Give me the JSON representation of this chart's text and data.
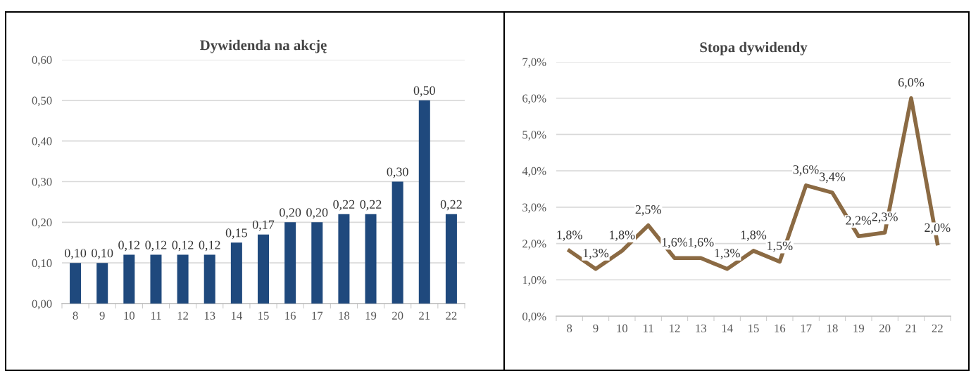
{
  "chart_data": [
    {
      "type": "bar",
      "title": "Dywidenda na akcję",
      "categories": [
        "8",
        "9",
        "10",
        "11",
        "12",
        "13",
        "14",
        "15",
        "16",
        "17",
        "18",
        "19",
        "20",
        "21",
        "22"
      ],
      "values": [
        0.1,
        0.1,
        0.12,
        0.12,
        0.12,
        0.12,
        0.15,
        0.17,
        0.2,
        0.2,
        0.22,
        0.22,
        0.3,
        0.5,
        0.22
      ],
      "value_labels": [
        "0,10",
        "0,10",
        "0,12",
        "0,12",
        "0,12",
        "0,12",
        "0,15",
        "0,17",
        "0,20",
        "0,20",
        "0,22",
        "0,22",
        "0,30",
        "0,50",
        "0,22"
      ],
      "color": "#1f497d",
      "ylim": [
        0,
        0.6
      ],
      "yticks": [
        {
          "value": 0,
          "label": "0,00"
        },
        {
          "value": 0.1,
          "label": "0,10"
        },
        {
          "value": 0.2,
          "label": "0,20"
        },
        {
          "value": 0.3,
          "label": "0,30"
        },
        {
          "value": 0.4,
          "label": "0,40"
        },
        {
          "value": 0.5,
          "label": "0,50"
        },
        {
          "value": 0.6,
          "label": "0,60"
        }
      ],
      "grid": "y"
    },
    {
      "type": "line",
      "title": "Stopa dywidendy",
      "categories": [
        "8",
        "9",
        "10",
        "11",
        "12",
        "13",
        "14",
        "15",
        "16",
        "17",
        "18",
        "19",
        "20",
        "21",
        "22"
      ],
      "values": [
        1.8,
        1.3,
        1.8,
        2.5,
        1.6,
        1.6,
        1.3,
        1.8,
        1.5,
        3.6,
        3.4,
        2.2,
        2.3,
        6.0,
        2.0
      ],
      "value_labels": [
        "1,8%",
        "1,3%",
        "1,8%",
        "2,5%",
        "1,6%",
        "1,6%",
        "1,3%",
        "1,8%",
        "1,5%",
        "3,6%",
        "3,4%",
        "2,2%",
        "2,3%",
        "6,0%",
        "2,0%"
      ],
      "color": "#8b6a43",
      "ylim": [
        0,
        7
      ],
      "yticks": [
        {
          "value": 0,
          "label": "0,0%"
        },
        {
          "value": 1,
          "label": "1,0%"
        },
        {
          "value": 2,
          "label": "2,0%"
        },
        {
          "value": 3,
          "label": "3,0%"
        },
        {
          "value": 4,
          "label": "4,0%"
        },
        {
          "value": 5,
          "label": "5,0%"
        },
        {
          "value": 6,
          "label": "6,0%"
        },
        {
          "value": 7,
          "label": "7,0%"
        }
      ],
      "grid": "y",
      "marker": "none",
      "line_style": "solid"
    }
  ]
}
